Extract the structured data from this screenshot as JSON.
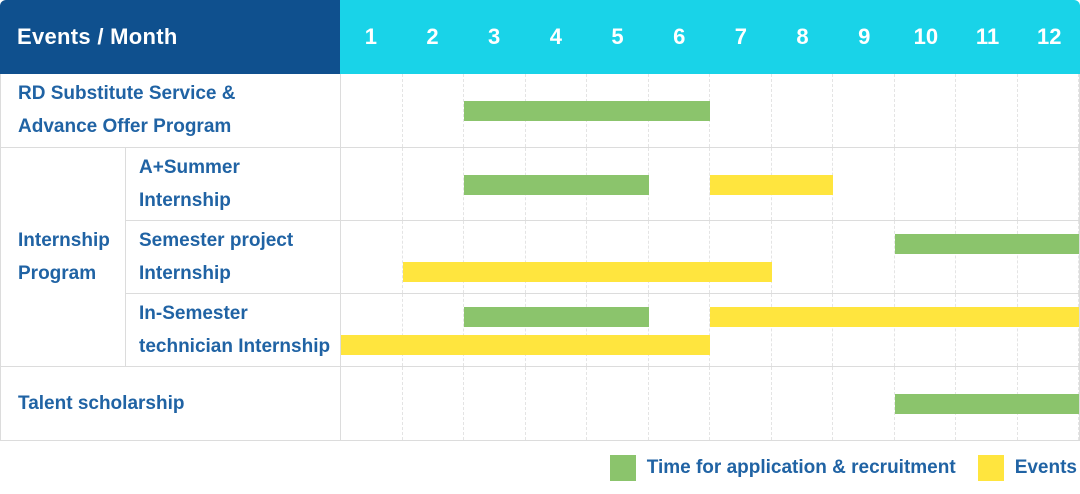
{
  "colors": {
    "header_bg": "#0f508e",
    "month_bg": "#19d3e8",
    "label": "#2063a4",
    "grid_border": "#dcdcdc"
  },
  "chart_data": {
    "type": "gantt",
    "title": "Events / Month",
    "x_axis_label": "Month",
    "months": [
      "1",
      "2",
      "3",
      "4",
      "5",
      "6",
      "7",
      "8",
      "9",
      "10",
      "11",
      "12"
    ],
    "x_range": [
      1,
      12
    ],
    "grid": "dashed-vertical-month-lines",
    "legend_position": "bottom-right",
    "series": [
      {
        "id": "application",
        "label": "Time for application & recruitment",
        "color": "#8bc46c"
      },
      {
        "id": "events",
        "label": "Events",
        "color": "#ffe53e"
      }
    ],
    "group_label_lines": [
      "Internship",
      "Program"
    ],
    "rows": [
      {
        "group": null,
        "label": "RD Substitute Service & Advance Offer Program",
        "label_lines": [
          "RD Substitute Service &",
          "Advance Offer Program"
        ],
        "bars": [
          {
            "series": "application",
            "start_month": 3,
            "end_month": 6,
            "line": 1
          }
        ]
      },
      {
        "group": "Internship Program",
        "label": "A+Summer Internship",
        "label_lines": [
          "A+Summer",
          "Internship"
        ],
        "bars": [
          {
            "series": "application",
            "start_month": 3,
            "end_month": 5,
            "line": 1
          },
          {
            "series": "events",
            "start_month": 7,
            "end_month": 8,
            "line": 1
          }
        ]
      },
      {
        "group": "Internship Program",
        "label": "Semester project Internship",
        "label_lines": [
          "Semester project",
          "Internship"
        ],
        "bars": [
          {
            "series": "application",
            "start_month": 10,
            "end_month": 12,
            "line": 1
          },
          {
            "series": "events",
            "start_month": 2,
            "end_month": 7,
            "line": 2
          }
        ]
      },
      {
        "group": "Internship Program",
        "label": "In-Semester technician Internship",
        "label_lines": [
          "In-Semester",
          "technician Internship"
        ],
        "bars": [
          {
            "series": "application",
            "start_month": 3,
            "end_month": 5,
            "line": 1
          },
          {
            "series": "events",
            "start_month": 7,
            "end_month": 12,
            "line": 1
          },
          {
            "series": "events",
            "start_month": 1,
            "end_month": 6,
            "line": 2
          }
        ]
      },
      {
        "group": null,
        "label": "Talent scholarship",
        "label_lines": [
          "Talent scholarship"
        ],
        "bars": [
          {
            "series": "application",
            "start_month": 10,
            "end_month": 12,
            "line": 1
          }
        ]
      }
    ]
  }
}
